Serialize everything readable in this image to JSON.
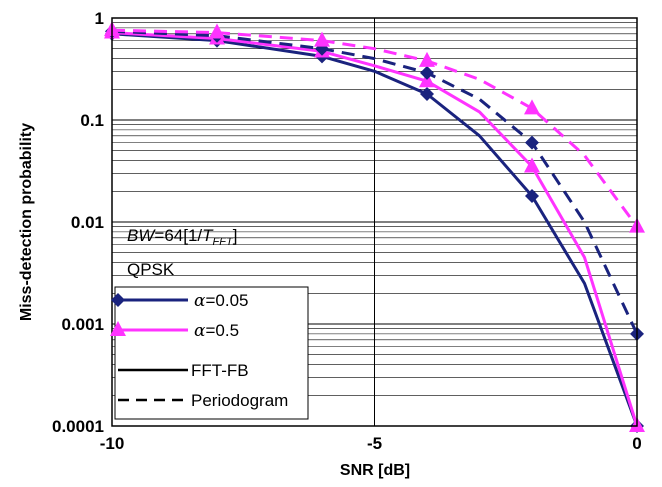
{
  "chart_data": {
    "type": "line",
    "xlabel": "SNR [dB]",
    "ylabel": "Miss-detection probability",
    "xlim": [
      -10,
      0
    ],
    "ylim": [
      0.0001,
      1
    ],
    "yscale": "log",
    "xticks": [
      "-10",
      "-5",
      "0"
    ],
    "yticks": [
      "0.0001",
      "0.001",
      "0.01",
      "0.1",
      "1"
    ],
    "grid": true,
    "annotations": {
      "bw_italic": "BW",
      "bw_mid": "=64[1/",
      "bw_t": "T",
      "bw_sub": "FFT",
      "bw_close": "]",
      "modulation": "QPSK"
    },
    "legend": {
      "placement": "bottom-left",
      "entries": [
        {
          "symbol": "α",
          "text": "=0.05",
          "color": "#1a237e",
          "marker": "diamond",
          "dash": "solid"
        },
        {
          "symbol": "α",
          "text": "=0.5",
          "color": "#ff33ff",
          "marker": "triangle",
          "dash": "solid"
        },
        {
          "text": "FFT-FB",
          "color": "#000000",
          "dash": "solid"
        },
        {
          "text": "Periodogram",
          "color": "#000000",
          "dash": "dashed"
        }
      ]
    },
    "series": [
      {
        "key": "navy_fft",
        "color": "#1a237e",
        "dash": "solid",
        "marker": "diamond",
        "x": [
          -10,
          -8,
          -6,
          -5,
          -4,
          -3,
          -2,
          -1,
          0
        ],
        "y": [
          0.7,
          0.6,
          0.42,
          0.3,
          0.18,
          0.07,
          0.018,
          0.0025,
          0.0001
        ]
      },
      {
        "key": "magenta_fft",
        "color": "#ff33ff",
        "dash": "solid",
        "marker": "triangle",
        "x": [
          -10,
          -8,
          -6,
          -5,
          -4,
          -3,
          -2,
          -1,
          0
        ],
        "y": [
          0.72,
          0.63,
          0.47,
          0.34,
          0.24,
          0.12,
          0.035,
          0.0045,
          0.0001
        ]
      },
      {
        "key": "navy_per",
        "color": "#1a237e",
        "dash": "dashed",
        "marker": "diamond",
        "x": [
          -10,
          -8,
          -6,
          -5,
          -4,
          -3,
          -2,
          -1,
          0
        ],
        "y": [
          0.74,
          0.67,
          0.5,
          0.4,
          0.29,
          0.16,
          0.06,
          0.01,
          0.0008
        ]
      },
      {
        "key": "magenta_per",
        "color": "#ff33ff",
        "dash": "dashed",
        "marker": "triangle",
        "x": [
          -10,
          -8,
          -6,
          -5,
          -4,
          -3,
          -2,
          -1,
          0
        ],
        "y": [
          0.76,
          0.72,
          0.6,
          0.5,
          0.38,
          0.25,
          0.13,
          0.045,
          0.009
        ]
      }
    ],
    "marker_x": [
      -10,
      -8,
      -6,
      -4,
      -2,
      0
    ]
  }
}
